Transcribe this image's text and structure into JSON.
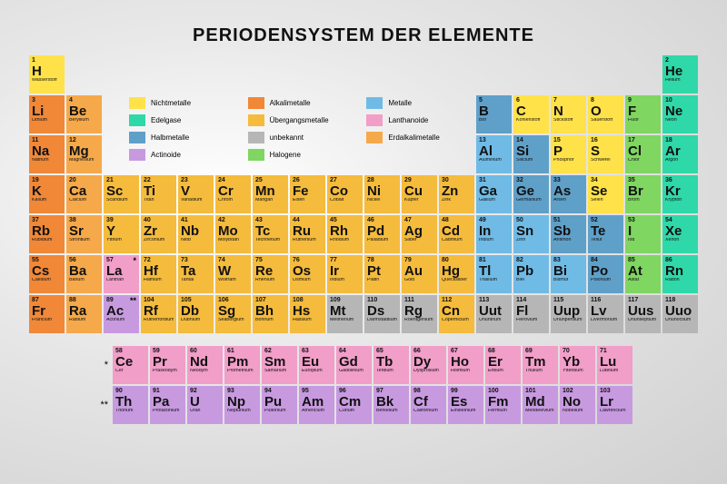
{
  "title": "PERIODENSYSTEM DER ELEMENTE",
  "colors": {
    "nichtmetalle": "#ffe24a",
    "alkalimetalle": "#f08838",
    "metalle": "#6fbbe6",
    "edelgase": "#2fd8a8",
    "uebergangsmetalle": "#f5bb3c",
    "lanthanoide": "#f19ec8",
    "halbmetalle": "#5fa0c9",
    "unbekannt": "#b6b6b6",
    "erdalkalimetalle": "#f6a94a",
    "actinoide": "#c79ae0",
    "halogene": "#7fd661"
  },
  "legend": [
    {
      "key": "nichtmetalle",
      "label": "Nichtmetalle"
    },
    {
      "key": "alkalimetalle",
      "label": "Alkalimetalle"
    },
    {
      "key": "metalle",
      "label": "Metalle"
    },
    {
      "key": "edelgase",
      "label": "Edelgase"
    },
    {
      "key": "uebergangsmetalle",
      "label": "Übergangsmetalle"
    },
    {
      "key": "lanthanoide",
      "label": "Lanthanoide"
    },
    {
      "key": "halbmetalle",
      "label": "Halbmetalle"
    },
    {
      "key": "unbekannt",
      "label": "unbekannt"
    },
    {
      "key": "erdalkalimetalle",
      "label": "Erdalkalimetalle"
    },
    {
      "key": "actinoide",
      "label": "Actinoide"
    },
    {
      "key": "halogene",
      "label": "Halogene"
    }
  ],
  "elements": [
    {
      "n": 1,
      "s": "H",
      "name": "Wasserstoff",
      "r": 1,
      "c": 1,
      "cat": "nichtmetalle"
    },
    {
      "n": 2,
      "s": "He",
      "name": "Helium",
      "r": 1,
      "c": 18,
      "cat": "edelgase"
    },
    {
      "n": 3,
      "s": "Li",
      "name": "Lithium",
      "r": 2,
      "c": 1,
      "cat": "alkalimetalle"
    },
    {
      "n": 4,
      "s": "Be",
      "name": "Beryllium",
      "r": 2,
      "c": 2,
      "cat": "erdalkalimetalle"
    },
    {
      "n": 5,
      "s": "B",
      "name": "Bor",
      "r": 2,
      "c": 13,
      "cat": "halbmetalle"
    },
    {
      "n": 6,
      "s": "C",
      "name": "Kohlenstoff",
      "r": 2,
      "c": 14,
      "cat": "nichtmetalle"
    },
    {
      "n": 7,
      "s": "N",
      "name": "Stickstoff",
      "r": 2,
      "c": 15,
      "cat": "nichtmetalle"
    },
    {
      "n": 8,
      "s": "O",
      "name": "Sauerstoff",
      "r": 2,
      "c": 16,
      "cat": "nichtmetalle"
    },
    {
      "n": 9,
      "s": "F",
      "name": "Fluor",
      "r": 2,
      "c": 17,
      "cat": "halogene"
    },
    {
      "n": 10,
      "s": "Ne",
      "name": "Neon",
      "r": 2,
      "c": 18,
      "cat": "edelgase"
    },
    {
      "n": 11,
      "s": "Na",
      "name": "Natrium",
      "r": 3,
      "c": 1,
      "cat": "alkalimetalle"
    },
    {
      "n": 12,
      "s": "Mg",
      "name": "Magnesium",
      "r": 3,
      "c": 2,
      "cat": "erdalkalimetalle"
    },
    {
      "n": 13,
      "s": "Al",
      "name": "Aluminium",
      "r": 3,
      "c": 13,
      "cat": "metalle"
    },
    {
      "n": 14,
      "s": "Si",
      "name": "Silicium",
      "r": 3,
      "c": 14,
      "cat": "halbmetalle"
    },
    {
      "n": 15,
      "s": "P",
      "name": "Phosphor",
      "r": 3,
      "c": 15,
      "cat": "nichtmetalle"
    },
    {
      "n": 16,
      "s": "S",
      "name": "Schwefel",
      "r": 3,
      "c": 16,
      "cat": "nichtmetalle"
    },
    {
      "n": 17,
      "s": "Cl",
      "name": "Chlor",
      "r": 3,
      "c": 17,
      "cat": "halogene"
    },
    {
      "n": 18,
      "s": "Ar",
      "name": "Argon",
      "r": 3,
      "c": 18,
      "cat": "edelgase"
    },
    {
      "n": 19,
      "s": "K",
      "name": "Kalium",
      "r": 4,
      "c": 1,
      "cat": "alkalimetalle"
    },
    {
      "n": 20,
      "s": "Ca",
      "name": "Calcium",
      "r": 4,
      "c": 2,
      "cat": "erdalkalimetalle"
    },
    {
      "n": 21,
      "s": "Sc",
      "name": "Scandium",
      "r": 4,
      "c": 3,
      "cat": "uebergangsmetalle"
    },
    {
      "n": 22,
      "s": "Ti",
      "name": "Titan",
      "r": 4,
      "c": 4,
      "cat": "uebergangsmetalle"
    },
    {
      "n": 23,
      "s": "V",
      "name": "Vanadium",
      "r": 4,
      "c": 5,
      "cat": "uebergangsmetalle"
    },
    {
      "n": 24,
      "s": "Cr",
      "name": "Chrom",
      "r": 4,
      "c": 6,
      "cat": "uebergangsmetalle"
    },
    {
      "n": 25,
      "s": "Mn",
      "name": "Mangan",
      "r": 4,
      "c": 7,
      "cat": "uebergangsmetalle"
    },
    {
      "n": 26,
      "s": "Fe",
      "name": "Eisen",
      "r": 4,
      "c": 8,
      "cat": "uebergangsmetalle"
    },
    {
      "n": 27,
      "s": "Co",
      "name": "Cobalt",
      "r": 4,
      "c": 9,
      "cat": "uebergangsmetalle"
    },
    {
      "n": 28,
      "s": "Ni",
      "name": "Nickel",
      "r": 4,
      "c": 10,
      "cat": "uebergangsmetalle"
    },
    {
      "n": 29,
      "s": "Cu",
      "name": "Kupfer",
      "r": 4,
      "c": 11,
      "cat": "uebergangsmetalle"
    },
    {
      "n": 30,
      "s": "Zn",
      "name": "Zink",
      "r": 4,
      "c": 12,
      "cat": "uebergangsmetalle"
    },
    {
      "n": 31,
      "s": "Ga",
      "name": "Gallium",
      "r": 4,
      "c": 13,
      "cat": "metalle"
    },
    {
      "n": 32,
      "s": "Ge",
      "name": "Germanium",
      "r": 4,
      "c": 14,
      "cat": "halbmetalle"
    },
    {
      "n": 33,
      "s": "As",
      "name": "Arsen",
      "r": 4,
      "c": 15,
      "cat": "halbmetalle"
    },
    {
      "n": 34,
      "s": "Se",
      "name": "Selen",
      "r": 4,
      "c": 16,
      "cat": "nichtmetalle"
    },
    {
      "n": 35,
      "s": "Br",
      "name": "Brom",
      "r": 4,
      "c": 17,
      "cat": "halogene"
    },
    {
      "n": 36,
      "s": "Kr",
      "name": "Krypton",
      "r": 4,
      "c": 18,
      "cat": "edelgase"
    },
    {
      "n": 37,
      "s": "Rb",
      "name": "Rubidium",
      "r": 5,
      "c": 1,
      "cat": "alkalimetalle"
    },
    {
      "n": 38,
      "s": "Sr",
      "name": "Strontium",
      "r": 5,
      "c": 2,
      "cat": "erdalkalimetalle"
    },
    {
      "n": 39,
      "s": "Y",
      "name": "Yttrium",
      "r": 5,
      "c": 3,
      "cat": "uebergangsmetalle"
    },
    {
      "n": 40,
      "s": "Zr",
      "name": "Zirconium",
      "r": 5,
      "c": 4,
      "cat": "uebergangsmetalle"
    },
    {
      "n": 41,
      "s": "Nb",
      "name": "Niob",
      "r": 5,
      "c": 5,
      "cat": "uebergangsmetalle"
    },
    {
      "n": 42,
      "s": "Mo",
      "name": "Molybdän",
      "r": 5,
      "c": 6,
      "cat": "uebergangsmetalle"
    },
    {
      "n": 43,
      "s": "Tc",
      "name": "Technetium",
      "r": 5,
      "c": 7,
      "cat": "uebergangsmetalle"
    },
    {
      "n": 44,
      "s": "Ru",
      "name": "Ruthenium",
      "r": 5,
      "c": 8,
      "cat": "uebergangsmetalle"
    },
    {
      "n": 45,
      "s": "Rh",
      "name": "Rhodium",
      "r": 5,
      "c": 9,
      "cat": "uebergangsmetalle"
    },
    {
      "n": 46,
      "s": "Pd",
      "name": "Palladium",
      "r": 5,
      "c": 10,
      "cat": "uebergangsmetalle"
    },
    {
      "n": 47,
      "s": "Ag",
      "name": "Silber",
      "r": 5,
      "c": 11,
      "cat": "uebergangsmetalle"
    },
    {
      "n": 48,
      "s": "Cd",
      "name": "Cadmium",
      "r": 5,
      "c": 12,
      "cat": "uebergangsmetalle"
    },
    {
      "n": 49,
      "s": "In",
      "name": "Indium",
      "r": 5,
      "c": 13,
      "cat": "metalle"
    },
    {
      "n": 50,
      "s": "Sn",
      "name": "Zinn",
      "r": 5,
      "c": 14,
      "cat": "metalle"
    },
    {
      "n": 51,
      "s": "Sb",
      "name": "Antimon",
      "r": 5,
      "c": 15,
      "cat": "halbmetalle"
    },
    {
      "n": 52,
      "s": "Te",
      "name": "Tellur",
      "r": 5,
      "c": 16,
      "cat": "halbmetalle"
    },
    {
      "n": 53,
      "s": "I",
      "name": "Iod",
      "r": 5,
      "c": 17,
      "cat": "halogene"
    },
    {
      "n": 54,
      "s": "Xe",
      "name": "Xenon",
      "r": 5,
      "c": 18,
      "cat": "edelgase"
    },
    {
      "n": 55,
      "s": "Cs",
      "name": "Caesium",
      "r": 6,
      "c": 1,
      "cat": "alkalimetalle"
    },
    {
      "n": 56,
      "s": "Ba",
      "name": "Barium",
      "r": 6,
      "c": 2,
      "cat": "erdalkalimetalle"
    },
    {
      "n": 57,
      "s": "La",
      "name": "Lanthan",
      "r": 6,
      "c": 3,
      "cat": "lanthanoide",
      "mark": "*"
    },
    {
      "n": 72,
      "s": "Hf",
      "name": "Hafnium",
      "r": 6,
      "c": 4,
      "cat": "uebergangsmetalle"
    },
    {
      "n": 73,
      "s": "Ta",
      "name": "Tantal",
      "r": 6,
      "c": 5,
      "cat": "uebergangsmetalle"
    },
    {
      "n": 74,
      "s": "W",
      "name": "Wolfram",
      "r": 6,
      "c": 6,
      "cat": "uebergangsmetalle"
    },
    {
      "n": 75,
      "s": "Re",
      "name": "Rhenium",
      "r": 6,
      "c": 7,
      "cat": "uebergangsmetalle"
    },
    {
      "n": 76,
      "s": "Os",
      "name": "Osmium",
      "r": 6,
      "c": 8,
      "cat": "uebergangsmetalle"
    },
    {
      "n": 77,
      "s": "Ir",
      "name": "Iridium",
      "r": 6,
      "c": 9,
      "cat": "uebergangsmetalle"
    },
    {
      "n": 78,
      "s": "Pt",
      "name": "Platin",
      "r": 6,
      "c": 10,
      "cat": "uebergangsmetalle"
    },
    {
      "n": 79,
      "s": "Au",
      "name": "Gold",
      "r": 6,
      "c": 11,
      "cat": "uebergangsmetalle"
    },
    {
      "n": 80,
      "s": "Hg",
      "name": "Quecksilber",
      "r": 6,
      "c": 12,
      "cat": "uebergangsmetalle"
    },
    {
      "n": 81,
      "s": "Tl",
      "name": "Thallium",
      "r": 6,
      "c": 13,
      "cat": "metalle"
    },
    {
      "n": 82,
      "s": "Pb",
      "name": "Blei",
      "r": 6,
      "c": 14,
      "cat": "metalle"
    },
    {
      "n": 83,
      "s": "Bi",
      "name": "Bismut",
      "r": 6,
      "c": 15,
      "cat": "metalle"
    },
    {
      "n": 84,
      "s": "Po",
      "name": "Polonium",
      "r": 6,
      "c": 16,
      "cat": "halbmetalle"
    },
    {
      "n": 85,
      "s": "At",
      "name": "Astat",
      "r": 6,
      "c": 17,
      "cat": "halogene"
    },
    {
      "n": 86,
      "s": "Rn",
      "name": "Radon",
      "r": 6,
      "c": 18,
      "cat": "edelgase"
    },
    {
      "n": 87,
      "s": "Fr",
      "name": "Francium",
      "r": 7,
      "c": 1,
      "cat": "alkalimetalle"
    },
    {
      "n": 88,
      "s": "Ra",
      "name": "Radium",
      "r": 7,
      "c": 2,
      "cat": "erdalkalimetalle"
    },
    {
      "n": 89,
      "s": "Ac",
      "name": "Actinium",
      "r": 7,
      "c": 3,
      "cat": "actinoide",
      "mark": "**"
    },
    {
      "n": 104,
      "s": "Rf",
      "name": "Rutherfordium",
      "r": 7,
      "c": 4,
      "cat": "uebergangsmetalle"
    },
    {
      "n": 105,
      "s": "Db",
      "name": "Dubnium",
      "r": 7,
      "c": 5,
      "cat": "uebergangsmetalle"
    },
    {
      "n": 106,
      "s": "Sg",
      "name": "Seaborgium",
      "r": 7,
      "c": 6,
      "cat": "uebergangsmetalle"
    },
    {
      "n": 107,
      "s": "Bh",
      "name": "Bohrium",
      "r": 7,
      "c": 7,
      "cat": "uebergangsmetalle"
    },
    {
      "n": 108,
      "s": "Hs",
      "name": "Hassium",
      "r": 7,
      "c": 8,
      "cat": "uebergangsmetalle"
    },
    {
      "n": 109,
      "s": "Mt",
      "name": "Meitnerium",
      "r": 7,
      "c": 9,
      "cat": "unbekannt"
    },
    {
      "n": 110,
      "s": "Ds",
      "name": "Darmstadtium",
      "r": 7,
      "c": 10,
      "cat": "unbekannt"
    },
    {
      "n": 111,
      "s": "Rg",
      "name": "Roentgenium",
      "r": 7,
      "c": 11,
      "cat": "unbekannt"
    },
    {
      "n": 112,
      "s": "Cn",
      "name": "Copernicium",
      "r": 7,
      "c": 12,
      "cat": "uebergangsmetalle"
    },
    {
      "n": 113,
      "s": "Uut",
      "name": "Ununtrium",
      "r": 7,
      "c": 13,
      "cat": "unbekannt"
    },
    {
      "n": 114,
      "s": "Fl",
      "name": "Flerovium",
      "r": 7,
      "c": 14,
      "cat": "unbekannt"
    },
    {
      "n": 115,
      "s": "Uup",
      "name": "Ununpentium",
      "r": 7,
      "c": 15,
      "cat": "unbekannt"
    },
    {
      "n": 116,
      "s": "Lv",
      "name": "Livermorium",
      "r": 7,
      "c": 16,
      "cat": "unbekannt"
    },
    {
      "n": 117,
      "s": "Uus",
      "name": "Ununseptium",
      "r": 7,
      "c": 17,
      "cat": "unbekannt"
    },
    {
      "n": 118,
      "s": "Uuo",
      "name": "Ununoctium",
      "r": 7,
      "c": 18,
      "cat": "unbekannt"
    }
  ],
  "fblock": [
    {
      "n": 58,
      "s": "Ce",
      "name": "Cer",
      "r": 1,
      "c": 1,
      "cat": "lanthanoide"
    },
    {
      "n": 59,
      "s": "Pr",
      "name": "Praseodym",
      "r": 1,
      "c": 2,
      "cat": "lanthanoide"
    },
    {
      "n": 60,
      "s": "Nd",
      "name": "Neodym",
      "r": 1,
      "c": 3,
      "cat": "lanthanoide"
    },
    {
      "n": 61,
      "s": "Pm",
      "name": "Promethium",
      "r": 1,
      "c": 4,
      "cat": "lanthanoide"
    },
    {
      "n": 62,
      "s": "Sm",
      "name": "Samarium",
      "r": 1,
      "c": 5,
      "cat": "lanthanoide"
    },
    {
      "n": 63,
      "s": "Eu",
      "name": "Europium",
      "r": 1,
      "c": 6,
      "cat": "lanthanoide"
    },
    {
      "n": 64,
      "s": "Gd",
      "name": "Gadolinium",
      "r": 1,
      "c": 7,
      "cat": "lanthanoide"
    },
    {
      "n": 65,
      "s": "Tb",
      "name": "Terbium",
      "r": 1,
      "c": 8,
      "cat": "lanthanoide"
    },
    {
      "n": 66,
      "s": "Dy",
      "name": "Dysprosium",
      "r": 1,
      "c": 9,
      "cat": "lanthanoide"
    },
    {
      "n": 67,
      "s": "Ho",
      "name": "Holmium",
      "r": 1,
      "c": 10,
      "cat": "lanthanoide"
    },
    {
      "n": 68,
      "s": "Er",
      "name": "Erbium",
      "r": 1,
      "c": 11,
      "cat": "lanthanoide"
    },
    {
      "n": 69,
      "s": "Tm",
      "name": "Thulium",
      "r": 1,
      "c": 12,
      "cat": "lanthanoide"
    },
    {
      "n": 70,
      "s": "Yb",
      "name": "Ytterbium",
      "r": 1,
      "c": 13,
      "cat": "lanthanoide"
    },
    {
      "n": 71,
      "s": "Lu",
      "name": "Lutetium",
      "r": 1,
      "c": 14,
      "cat": "lanthanoide"
    },
    {
      "n": 90,
      "s": "Th",
      "name": "Thorium",
      "r": 2,
      "c": 1,
      "cat": "actinoide"
    },
    {
      "n": 91,
      "s": "Pa",
      "name": "Protactinium",
      "r": 2,
      "c": 2,
      "cat": "actinoide"
    },
    {
      "n": 92,
      "s": "U",
      "name": "Uran",
      "r": 2,
      "c": 3,
      "cat": "actinoide"
    },
    {
      "n": 93,
      "s": "Np",
      "name": "Neptunium",
      "r": 2,
      "c": 4,
      "cat": "actinoide"
    },
    {
      "n": 94,
      "s": "Pu",
      "name": "Plutonium",
      "r": 2,
      "c": 5,
      "cat": "actinoide"
    },
    {
      "n": 95,
      "s": "Am",
      "name": "Americium",
      "r": 2,
      "c": 6,
      "cat": "actinoide"
    },
    {
      "n": 96,
      "s": "Cm",
      "name": "Curium",
      "r": 2,
      "c": 7,
      "cat": "actinoide"
    },
    {
      "n": 97,
      "s": "Bk",
      "name": "Berkelium",
      "r": 2,
      "c": 8,
      "cat": "actinoide"
    },
    {
      "n": 98,
      "s": "Cf",
      "name": "Californium",
      "r": 2,
      "c": 9,
      "cat": "actinoide"
    },
    {
      "n": 99,
      "s": "Es",
      "name": "Einsteinium",
      "r": 2,
      "c": 10,
      "cat": "actinoide"
    },
    {
      "n": 100,
      "s": "Fm",
      "name": "Fermium",
      "r": 2,
      "c": 11,
      "cat": "actinoide"
    },
    {
      "n": 101,
      "s": "Md",
      "name": "Mendelevium",
      "r": 2,
      "c": 12,
      "cat": "actinoide"
    },
    {
      "n": 102,
      "s": "No",
      "name": "Nobelium",
      "r": 2,
      "c": 13,
      "cat": "actinoide"
    },
    {
      "n": 103,
      "s": "Lr",
      "name": "Lawrencium",
      "r": 2,
      "c": 14,
      "cat": "actinoide"
    }
  ],
  "asterisks": {
    "r1": "*",
    "r2": "**"
  }
}
